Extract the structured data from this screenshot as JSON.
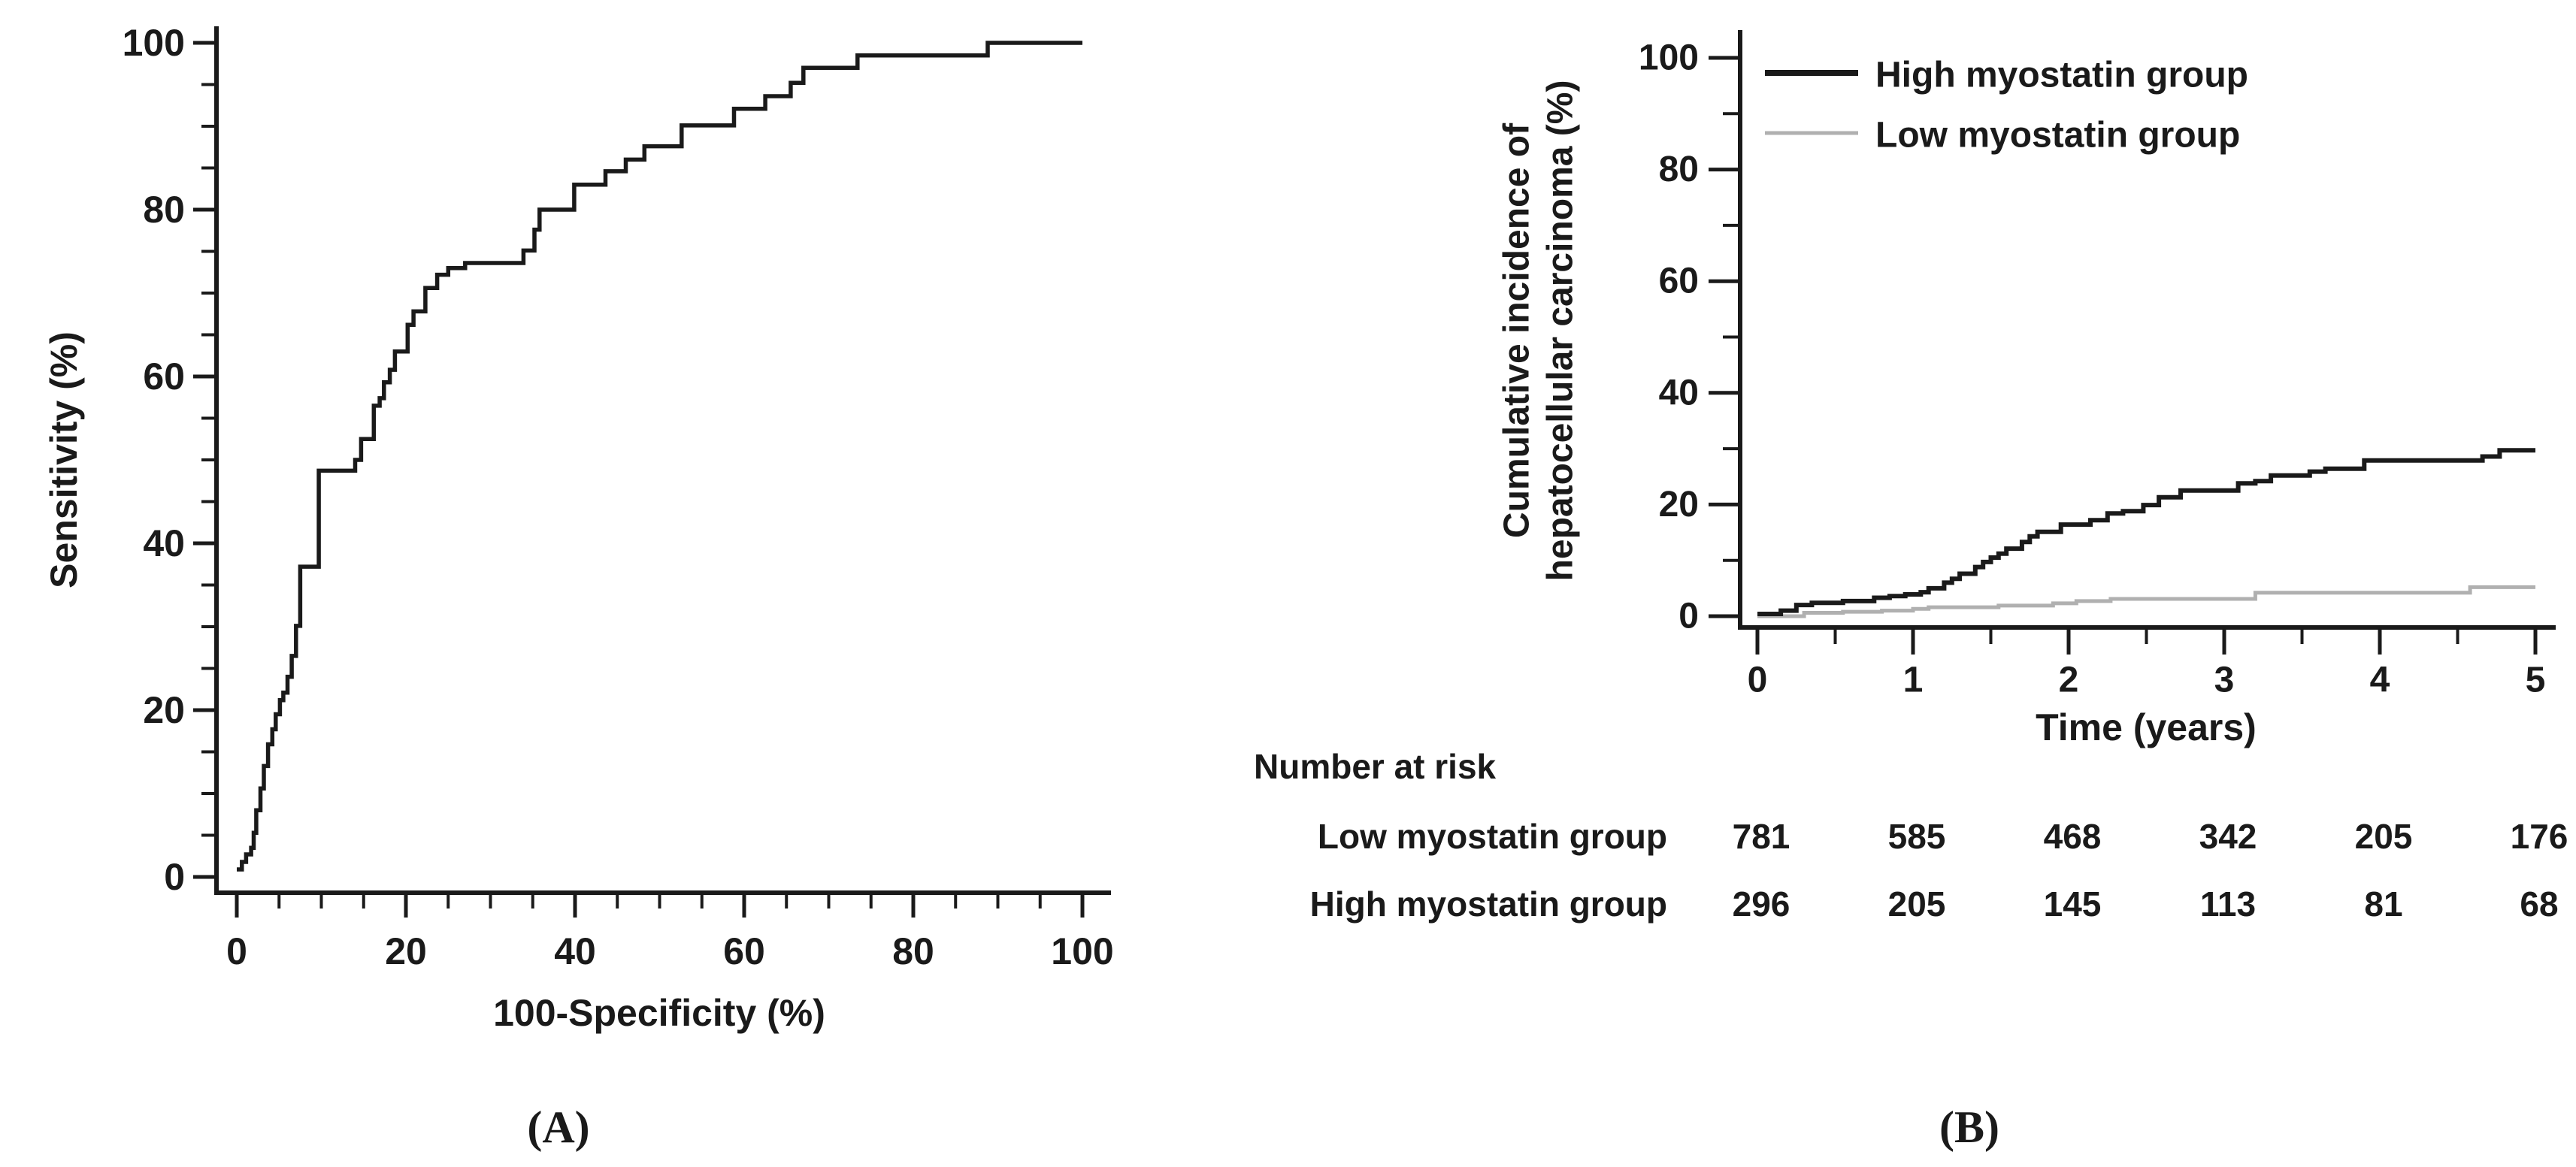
{
  "colors": {
    "ink": "#1a1a1a",
    "gray_series": "#b0b0b0",
    "background": "#ffffff"
  },
  "chart_data": [
    {
      "panel": "A",
      "panel_label": "(A)",
      "type": "line",
      "subtype": "roc_step_curve",
      "title": "",
      "xlabel": "100-Specificity (%)",
      "ylabel": "Sensitivity (%)",
      "xlim": [
        0,
        100
      ],
      "ylim": [
        0,
        100
      ],
      "x_ticks": [
        0,
        20,
        40,
        60,
        80,
        100
      ],
      "y_ticks": [
        0,
        20,
        40,
        60,
        80,
        100
      ],
      "x_minor_step": 5,
      "y_minor_step": 5,
      "grid": "off",
      "legend": "none",
      "series": [
        {
          "name": "ROC curve",
          "color": "#1a1a1a",
          "points": [
            [
              0,
              0.9
            ],
            [
              0.6,
              1.8
            ],
            [
              1.1,
              2.7
            ],
            [
              1.7,
              3.5
            ],
            [
              2.0,
              5.3
            ],
            [
              2.3,
              8.0
            ],
            [
              2.8,
              10.6
            ],
            [
              3.2,
              13.3
            ],
            [
              3.7,
              15.9
            ],
            [
              4.2,
              17.7
            ],
            [
              4.6,
              19.5
            ],
            [
              5.1,
              21.2
            ],
            [
              5.5,
              22.1
            ],
            [
              6.0,
              24.0
            ],
            [
              6.5,
              26.5
            ],
            [
              7.0,
              30.1
            ],
            [
              7.5,
              37.2
            ],
            [
              9.7,
              48.7
            ],
            [
              14.0,
              50.0
            ],
            [
              14.7,
              52.5
            ],
            [
              16.2,
              56.5
            ],
            [
              16.9,
              57.4
            ],
            [
              17.4,
              59.3
            ],
            [
              18.1,
              60.8
            ],
            [
              18.7,
              63.0
            ],
            [
              20.2,
              66.2
            ],
            [
              20.9,
              67.8
            ],
            [
              22.3,
              70.6
            ],
            [
              23.7,
              72.2
            ],
            [
              25.0,
              73.0
            ],
            [
              27.0,
              73.6
            ],
            [
              33.9,
              75.1
            ],
            [
              35.2,
              77.6
            ],
            [
              35.8,
              80.0
            ],
            [
              39.9,
              83.0
            ],
            [
              43.6,
              84.6
            ],
            [
              46.0,
              86.0
            ],
            [
              48.2,
              87.6
            ],
            [
              52.6,
              90.1
            ],
            [
              58.8,
              92.1
            ],
            [
              62.5,
              93.6
            ],
            [
              65.5,
              95.2
            ],
            [
              67.0,
              97.0
            ],
            [
              73.4,
              98.5
            ],
            [
              88.8,
              100.0
            ],
            [
              100.0,
              100.0
            ]
          ]
        }
      ]
    },
    {
      "panel": "B",
      "panel_label": "(B)",
      "type": "line",
      "subtype": "cumulative_incidence_step_curves",
      "title": "",
      "xlabel": "Time (years)",
      "ylabel_lines": [
        "Cumulative incidence of",
        "hepatocellular carcinoma (%)"
      ],
      "xlim": [
        0,
        5
      ],
      "ylim": [
        0,
        100
      ],
      "x_ticks": [
        0,
        1,
        2,
        3,
        4,
        5
      ],
      "y_ticks": [
        0,
        20,
        40,
        60,
        80,
        100
      ],
      "x_minor_step": 0.5,
      "y_minor_step": 10,
      "grid": "off",
      "legend_position": "top-left-inside",
      "series": [
        {
          "name": "High myostatin group",
          "color": "#1a1a1a",
          "points": [
            [
              0,
              0.4
            ],
            [
              0.15,
              1.0
            ],
            [
              0.25,
              2.0
            ],
            [
              0.35,
              2.4
            ],
            [
              0.55,
              2.7
            ],
            [
              0.75,
              3.3
            ],
            [
              0.85,
              3.6
            ],
            [
              0.95,
              3.9
            ],
            [
              1.05,
              4.3
            ],
            [
              1.1,
              5.0
            ],
            [
              1.2,
              6.0
            ],
            [
              1.25,
              6.7
            ],
            [
              1.3,
              7.6
            ],
            [
              1.4,
              8.8
            ],
            [
              1.45,
              9.7
            ],
            [
              1.5,
              10.5
            ],
            [
              1.55,
              11.2
            ],
            [
              1.6,
              12.1
            ],
            [
              1.7,
              13.3
            ],
            [
              1.75,
              14.3
            ],
            [
              1.8,
              15.1
            ],
            [
              1.95,
              16.4
            ],
            [
              2.14,
              17.2
            ],
            [
              2.25,
              18.4
            ],
            [
              2.35,
              18.8
            ],
            [
              2.48,
              19.9
            ],
            [
              2.58,
              21.3
            ],
            [
              2.72,
              22.5
            ],
            [
              3.09,
              23.8
            ],
            [
              3.2,
              24.2
            ],
            [
              3.3,
              25.2
            ],
            [
              3.55,
              25.9
            ],
            [
              3.65,
              26.4
            ],
            [
              3.9,
              27.9
            ],
            [
              4.66,
              28.6
            ],
            [
              4.77,
              29.7
            ],
            [
              5.0,
              29.7
            ]
          ]
        },
        {
          "name": "Low myostatin group",
          "color": "#b0b0b0",
          "points": [
            [
              0,
              0.0
            ],
            [
              0.3,
              0.6
            ],
            [
              0.55,
              0.8
            ],
            [
              0.8,
              1.0
            ],
            [
              1.0,
              1.3
            ],
            [
              1.1,
              1.6
            ],
            [
              1.55,
              1.9
            ],
            [
              1.9,
              2.3
            ],
            [
              2.05,
              2.7
            ],
            [
              2.27,
              3.1
            ],
            [
              3.2,
              4.2
            ],
            [
              4.58,
              5.2
            ],
            [
              5.0,
              5.2
            ]
          ]
        }
      ],
      "number_at_risk": {
        "title": "Number at risk",
        "time_points": [
          0,
          1,
          2,
          3,
          4,
          5
        ],
        "rows": [
          {
            "label": "Low myostatin group",
            "values": [
              "781",
              "585",
              "468",
              "342",
              "205",
              "176"
            ]
          },
          {
            "label": "High myostatin group",
            "values": [
              "296",
              "205",
              "145",
              "113",
              "81",
              "68"
            ]
          }
        ]
      }
    }
  ]
}
